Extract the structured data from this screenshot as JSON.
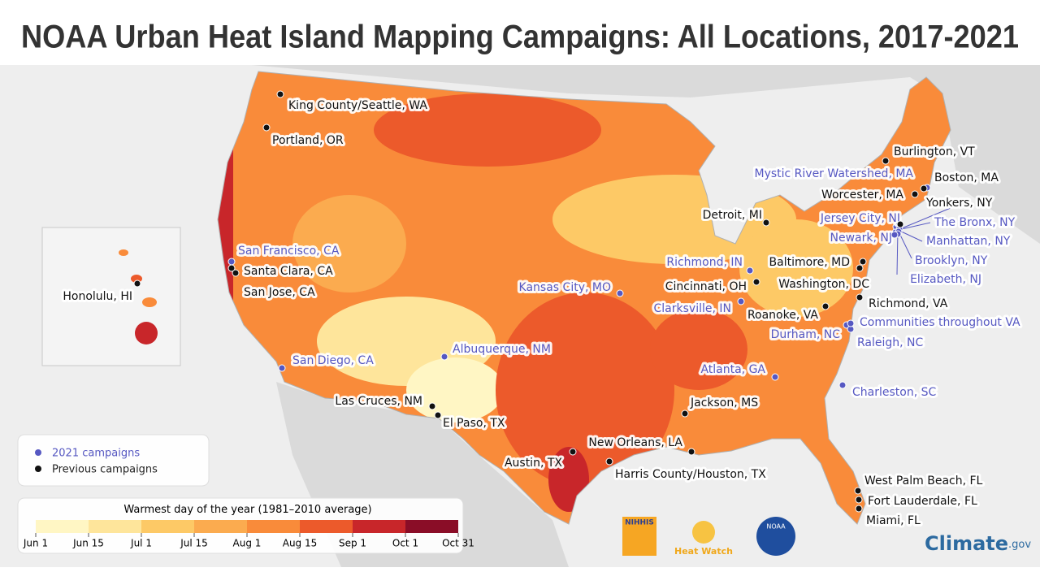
{
  "header": {
    "title": "NOAA Urban Heat Island Mapping Campaigns: All Locations, 2017-2021"
  },
  "legend": [
    {
      "label": "2021 campaigns",
      "color": "#5658c2",
      "locations": [
        "San Francisco, CA",
        "San Diego, CA",
        "Albuquerque, NM",
        "Kansas City, MO",
        "Atlanta, GA",
        "Charleston, SC",
        "Clarksville, IN",
        "Richmond, IN",
        "Durham, NC",
        "Raleigh, NC",
        "Communities throughout VA",
        "Mystic River Watershed, MA",
        "Jersey City, NJ",
        "The Bronx, NY",
        "Newark, NJ",
        "Manhattan, NY",
        "Brooklyn, NY",
        "Elizabeth, NJ"
      ]
    },
    {
      "label": "Previous campaigns",
      "color": "#111111",
      "locations": [
        "King County/Seattle, WA",
        "Portland, OR",
        "Santa Clara, CA",
        "San Jose, CA",
        "Honolulu, HI",
        "Las Cruces, NM",
        "El Paso, TX",
        "Austin, TX",
        "New Orleans, LA",
        "Harris County/Houston, TX",
        "Jackson, MS",
        "Cincinnati, OH",
        "Detroit, MI",
        "Roanoke, VA",
        "Richmond, VA",
        "Washington, DC",
        "Baltimore, MD",
        "Worcester, MA",
        "Boston, MA",
        "Burlington, VT",
        "Yonkers, NY",
        "West Palm Beach, FL",
        "Fort Lauderdale, FL",
        "Miami, FL"
      ]
    }
  ],
  "color_scale": {
    "title": "Warmest day of the year",
    "subtitle": "(1981–2010 average)",
    "ticks": [
      "Jun 1",
      "Jun 15",
      "Jul 1",
      "Jul 15",
      "Aug 1",
      "Aug 15",
      "Sep 1",
      "Oct 1",
      "Oct 31"
    ],
    "colors": [
      "#fff6c4",
      "#fee59b",
      "#fdc966",
      "#fbab4f",
      "#f98b3a",
      "#ec5a2b",
      "#c8262a",
      "#8a0d27"
    ]
  },
  "logos": {
    "nihhis": "NIHHIS",
    "heat_watch": "Heat Watch",
    "noaa": "NOAA",
    "climate": "Climate",
    "climate_suffix": ".gov"
  }
}
